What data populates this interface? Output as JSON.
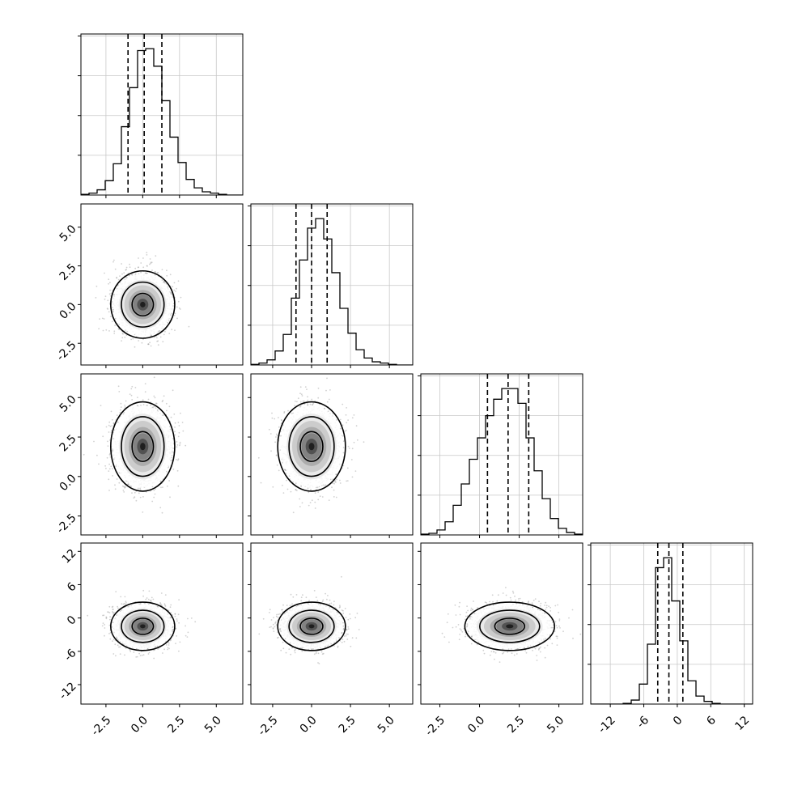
{
  "chart_data": {
    "type": "corner",
    "parameters": 4,
    "grid": true,
    "title": "",
    "axis_labels": [
      "",
      "",
      "",
      ""
    ],
    "ranges": [
      [
        -4.2,
        6.8
      ],
      [
        -3.9,
        6.5
      ],
      [
        -3.7,
        6.5
      ],
      [
        -15.5,
        13.5
      ]
    ],
    "ticks": [
      [
        "-2.5",
        "0.0",
        "2.5",
        "5.0"
      ],
      [
        "-2.5",
        "0.0",
        "2.5",
        "5.0"
      ],
      [
        "-2.5",
        "0.0",
        "2.5",
        "5.0"
      ],
      [
        "-12",
        "-6",
        "0",
        "6",
        "12"
      ]
    ],
    "tick_values": [
      [
        -2.5,
        0.0,
        2.5,
        5.0
      ],
      [
        -2.5,
        0.0,
        2.5,
        5.0
      ],
      [
        -2.5,
        0.0,
        2.5,
        5.0
      ],
      [
        -12,
        -6,
        0,
        6,
        12
      ]
    ],
    "quantiles": [
      [
        -1.0,
        0.1,
        1.3
      ],
      [
        -1.0,
        0.0,
        1.0
      ],
      [
        0.5,
        1.8,
        3.1
      ],
      [
        -3.5,
        -1.5,
        1.0
      ]
    ],
    "histograms": [
      {
        "bin_start": -4.2,
        "bin_width": 0.55,
        "counts": [
          1,
          3,
          8,
          22,
          48,
          105,
          165,
          222,
          225,
          198,
          145,
          89,
          50,
          24,
          11,
          5,
          3,
          1,
          0,
          0
        ]
      },
      {
        "bin_start": -3.9,
        "bin_width": 0.52,
        "counts": [
          1,
          3,
          8,
          22,
          48,
          105,
          165,
          215,
          230,
          198,
          145,
          89,
          50,
          24,
          11,
          5,
          3,
          1,
          0,
          0
        ]
      },
      {
        "bin_start": -3.7,
        "bin_width": 0.51,
        "counts": [
          1,
          2,
          6,
          16,
          36,
          62,
          92,
          118,
          145,
          165,
          178,
          178,
          160,
          118,
          78,
          44,
          20,
          8,
          3,
          1
        ]
      },
      {
        "bin_start": -15.5,
        "bin_width": 1.45,
        "counts": [
          0,
          0,
          0,
          0,
          1,
          6,
          30,
          90,
          205,
          220,
          155,
          95,
          35,
          12,
          4,
          1,
          0,
          0,
          0,
          0
        ]
      }
    ],
    "pairs": [
      {
        "row": 1,
        "col": 0,
        "center": [
          0.0,
          0.0
        ],
        "sigma": [
          1.0,
          1.0
        ]
      },
      {
        "row": 2,
        "col": 0,
        "center": [
          0.0,
          1.9
        ],
        "sigma": [
          1.0,
          1.3
        ]
      },
      {
        "row": 2,
        "col": 1,
        "center": [
          0.0,
          1.9
        ],
        "sigma": [
          1.0,
          1.3
        ]
      },
      {
        "row": 3,
        "col": 0,
        "center": [
          0.0,
          -1.5
        ],
        "sigma": [
          1.0,
          2.0
        ]
      },
      {
        "row": 3,
        "col": 1,
        "center": [
          0.0,
          -1.5
        ],
        "sigma": [
          1.0,
          2.0
        ]
      },
      {
        "row": 3,
        "col": 2,
        "center": [
          1.9,
          -1.5
        ],
        "sigma": [
          1.3,
          2.0
        ]
      }
    ],
    "contour_levels": [
      0.5,
      1.0,
      1.5
    ]
  }
}
